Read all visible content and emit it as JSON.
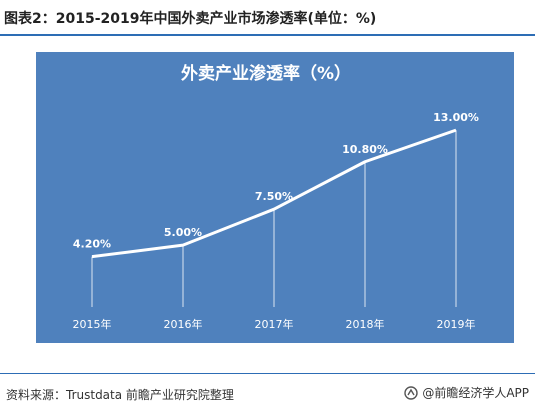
{
  "figure": {
    "caption": "图表2：2015-2019年中国外卖产业市场渗透率(单位：%)",
    "source": "资料来源：Trustdata 前瞻产业研究院整理",
    "brand": "@前瞻经济学人APP"
  },
  "colors": {
    "panel_background": "#4f81bd",
    "line": "#ffffff",
    "drop_lines": "#dbe5f1",
    "text_on_panel": "#ffffff",
    "rule": "#2d6db5"
  },
  "chart_data": {
    "type": "line",
    "title": "外卖产业渗透率（%）",
    "categories": [
      "2015年",
      "2016年",
      "2017年",
      "2018年",
      "2019年"
    ],
    "series": [
      {
        "values": [
          4.2,
          5.0,
          7.5,
          10.8,
          13.0
        ],
        "data_labels": [
          "4.20%",
          "5.00%",
          "7.50%",
          "10.80%",
          "13.00%"
        ]
      }
    ],
    "ylim": [
      0,
      16
    ],
    "grid": false,
    "legend": "none",
    "drop_lines": true
  }
}
